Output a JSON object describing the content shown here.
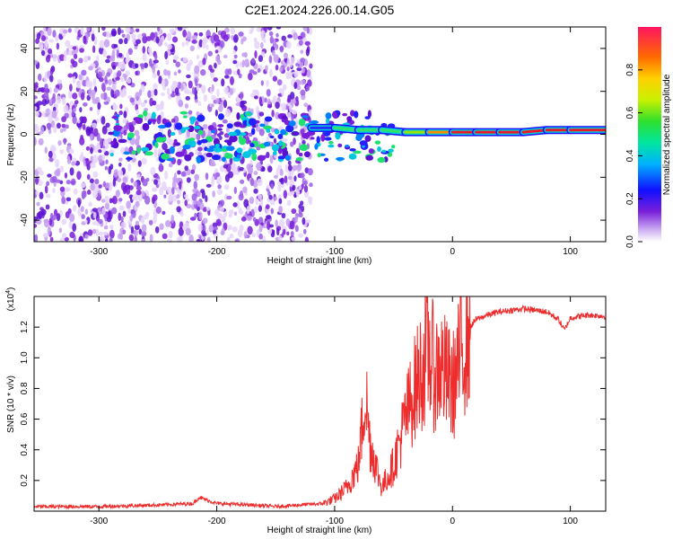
{
  "figure_title": "C2E1.2024.226.00.14.G05",
  "colors": {
    "snr_line": "#ee2c2c",
    "ridge": "#e8192c",
    "axis": "#000000"
  },
  "chart_data": [
    {
      "type": "heatmap",
      "title": "C2E1.2024.226.00.14.G05",
      "xlabel": "Height of straight line (km)",
      "ylabel": "Frequency (Hz)",
      "xlim": [
        -355,
        130
      ],
      "ylim": [
        -50,
        50
      ],
      "x_ticks": [
        -300,
        -200,
        -100,
        0,
        100
      ],
      "x_tick_labels": [
        "-300",
        "-200",
        "-100",
        "0",
        "100"
      ],
      "y_ticks": [
        -40,
        -20,
        0,
        20,
        40
      ],
      "y_tick_labels": [
        "-40",
        "-20",
        "0",
        "20",
        "40"
      ],
      "colorbar": {
        "label": "Normalized spectral amplitude",
        "range": [
          0,
          1
        ],
        "ticks": [
          0.0,
          0.2,
          0.4,
          0.6,
          0.8
        ],
        "tick_labels": [
          "0.0",
          "0.2",
          "0.4",
          "0.6",
          "0.8"
        ],
        "colormap": "rainbow"
      },
      "dominant_frequency_ridge": {
        "x": [
          -120,
          -100,
          -80,
          -60,
          -40,
          -20,
          0,
          20,
          40,
          60,
          80,
          100,
          130
        ],
        "freq_hz": [
          3,
          3,
          2,
          2,
          1,
          1,
          1,
          1,
          1,
          1,
          2,
          2,
          2
        ],
        "normalized_amplitude": [
          0.45,
          0.5,
          0.5,
          0.55,
          0.6,
          0.8,
          0.95,
          0.95,
          0.95,
          0.95,
          0.9,
          0.9,
          0.85
        ]
      }
    },
    {
      "type": "line",
      "xlabel": "Height of straight line (km)",
      "ylabel": "SNR (10 * v/v)",
      "y_multiplier_label": "(x10",
      "y_multiplier_exp": "4",
      "xlim": [
        -355,
        130
      ],
      "ylim": [
        0.0,
        1.4
      ],
      "x_ticks": [
        -300,
        -200,
        -100,
        0,
        100
      ],
      "x_tick_labels": [
        "-300",
        "-200",
        "-100",
        "0",
        "100"
      ],
      "y_ticks": [
        0.2,
        0.4,
        0.6,
        0.8,
        1.0,
        1.2
      ],
      "y_tick_labels": [
        "0.2",
        "0.4",
        "0.6",
        "0.8",
        "1.0",
        "1.2"
      ],
      "series": [
        {
          "x": [
            -355,
            -300,
            -250,
            -220,
            -215,
            -200,
            -170,
            -150,
            -130,
            -110,
            -100,
            -90,
            -80,
            -76,
            -74,
            -70,
            -60,
            -50,
            -40,
            -30,
            -20,
            -15,
            -10,
            0,
            10,
            15,
            20,
            30,
            40,
            60,
            80,
            90,
            95,
            100,
            115,
            130
          ],
          "y": [
            0.03,
            0.03,
            0.04,
            0.05,
            0.09,
            0.05,
            0.04,
            0.03,
            0.04,
            0.05,
            0.08,
            0.15,
            0.3,
            0.6,
            0.8,
            0.45,
            0.15,
            0.3,
            0.6,
            0.85,
            1.05,
            0.9,
            0.95,
            0.8,
            1.1,
            1.2,
            1.25,
            1.28,
            1.3,
            1.32,
            1.3,
            1.25,
            1.18,
            1.26,
            1.28,
            1.27
          ]
        }
      ]
    }
  ]
}
